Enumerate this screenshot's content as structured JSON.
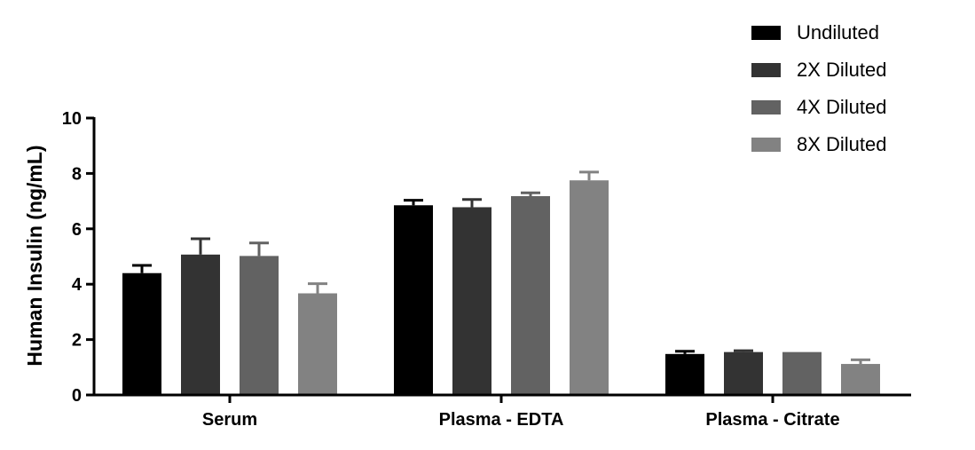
{
  "chart_data": {
    "type": "bar",
    "title": "",
    "xlabel": "",
    "ylabel": "Human Insulin (ng/mL)",
    "ylim": [
      0,
      10
    ],
    "yticks": [
      0,
      2,
      4,
      6,
      8,
      10
    ],
    "grid": false,
    "legend": "top-right",
    "categories": [
      "Serum",
      "Plasma - EDTA",
      "Plasma - Citrate"
    ],
    "series": [
      {
        "name": "Undiluted",
        "color": "#000000",
        "values": [
          4.4,
          6.85,
          1.48
        ],
        "errors": [
          0.28,
          0.18,
          0.1
        ]
      },
      {
        "name": "2X Diluted",
        "color": "#333333",
        "values": [
          5.07,
          6.78,
          1.55
        ],
        "errors": [
          0.57,
          0.28,
          0.05
        ]
      },
      {
        "name": "4X Diluted",
        "color": "#626262",
        "values": [
          5.02,
          7.18,
          1.55
        ],
        "errors": [
          0.47,
          0.12,
          0.0
        ]
      },
      {
        "name": "8X Diluted",
        "color": "#828282",
        "values": [
          3.67,
          7.75,
          1.12
        ],
        "errors": [
          0.35,
          0.3,
          0.15
        ]
      }
    ]
  }
}
